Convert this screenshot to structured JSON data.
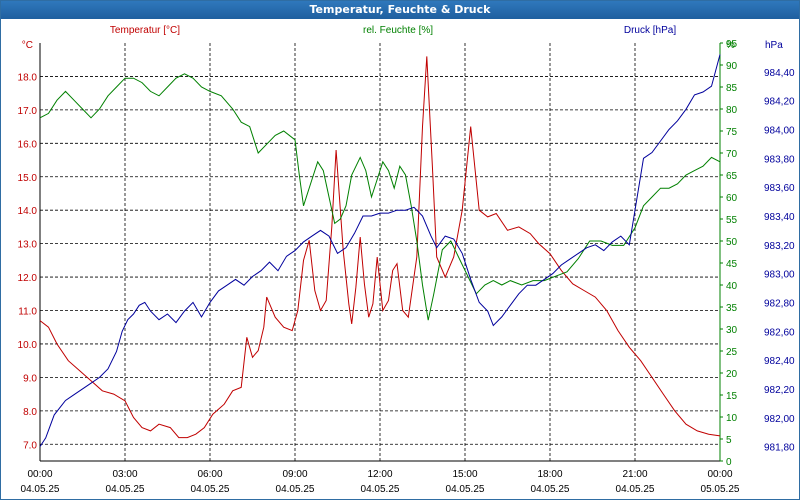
{
  "window": {
    "title": "Temperatur, Feuchte & Druck"
  },
  "colors": {
    "temperature": "#c00000",
    "humidity": "#008000",
    "pressure": "#00009c",
    "grid": "#000000",
    "frame": "#2f6da3"
  },
  "chart_data": {
    "type": "line",
    "title": "Temperatur, Feuchte & Druck",
    "x_unit": "hours since 04.05.25 00:00",
    "x_range": [
      0,
      24
    ],
    "x_ticks": [
      {
        "x": 0,
        "time": "00:00",
        "date": "04.05.25"
      },
      {
        "x": 3,
        "time": "03:00",
        "date": "04.05.25"
      },
      {
        "x": 6,
        "time": "06:00",
        "date": "04.05.25"
      },
      {
        "x": 9,
        "time": "09:00",
        "date": "04.05.25"
      },
      {
        "x": 12,
        "time": "12:00",
        "date": "04.05.25"
      },
      {
        "x": 15,
        "time": "15:00",
        "date": "04.05.25"
      },
      {
        "x": 18,
        "time": "18:00",
        "date": "04.05.25"
      },
      {
        "x": 21,
        "time": "21:00",
        "date": "04.05.25"
      },
      {
        "x": 24,
        "time": "00:00",
        "date": "05.05.25"
      }
    ],
    "axes": {
      "temperature": {
        "legend": "Temperatur [°C]",
        "unit": "°C",
        "range": [
          6.5,
          19.0
        ],
        "ticks": [
          "7.0",
          "8.0",
          "9.0",
          "10.0",
          "11.0",
          "12.0",
          "13.0",
          "14.0",
          "15.0",
          "16.0",
          "17.0",
          "18.0"
        ]
      },
      "humidity": {
        "legend": "rel. Feuchte [%]",
        "unit": "%",
        "range": [
          0,
          95
        ],
        "ticks": [
          "0",
          "5",
          "10",
          "15",
          "20",
          "25",
          "30",
          "35",
          "40",
          "45",
          "50",
          "55",
          "60",
          "65",
          "70",
          "75",
          "80",
          "85",
          "90",
          "95"
        ]
      },
      "pressure": {
        "legend": "Druck [hPa]",
        "unit": "hPa",
        "range": [
          981.7,
          984.6
        ],
        "ticks": [
          "981,80",
          "982,00",
          "982,20",
          "982,40",
          "982,60",
          "982,80",
          "983,00",
          "983,20",
          "983,40",
          "983,60",
          "983,80",
          "984,00",
          "984,20",
          "984,40"
        ]
      }
    },
    "series": [
      {
        "name": "Temperatur",
        "axis": "temperature",
        "points": [
          [
            0,
            10.7
          ],
          [
            0.3,
            10.5
          ],
          [
            0.6,
            10.0
          ],
          [
            1.0,
            9.5
          ],
          [
            1.4,
            9.2
          ],
          [
            1.8,
            8.9
          ],
          [
            2.2,
            8.6
          ],
          [
            2.6,
            8.5
          ],
          [
            3.0,
            8.3
          ],
          [
            3.3,
            7.8
          ],
          [
            3.6,
            7.5
          ],
          [
            3.9,
            7.4
          ],
          [
            4.2,
            7.6
          ],
          [
            4.6,
            7.5
          ],
          [
            4.9,
            7.2
          ],
          [
            5.2,
            7.2
          ],
          [
            5.5,
            7.3
          ],
          [
            5.8,
            7.5
          ],
          [
            6.1,
            7.9
          ],
          [
            6.5,
            8.2
          ],
          [
            6.8,
            8.6
          ],
          [
            7.1,
            8.7
          ],
          [
            7.3,
            10.2
          ],
          [
            7.5,
            9.6
          ],
          [
            7.7,
            9.8
          ],
          [
            7.9,
            10.5
          ],
          [
            8.0,
            11.4
          ],
          [
            8.3,
            10.8
          ],
          [
            8.6,
            10.5
          ],
          [
            8.9,
            10.4
          ],
          [
            9.1,
            11.0
          ],
          [
            9.3,
            12.5
          ],
          [
            9.5,
            13.1
          ],
          [
            9.7,
            11.6
          ],
          [
            9.9,
            11.0
          ],
          [
            10.1,
            11.3
          ],
          [
            10.3,
            13.5
          ],
          [
            10.45,
            15.8
          ],
          [
            10.7,
            12.8
          ],
          [
            10.9,
            11.2
          ],
          [
            11.0,
            10.6
          ],
          [
            11.15,
            11.7
          ],
          [
            11.3,
            13.2
          ],
          [
            11.45,
            11.8
          ],
          [
            11.6,
            10.8
          ],
          [
            11.75,
            11.2
          ],
          [
            11.9,
            12.6
          ],
          [
            12.1,
            11.0
          ],
          [
            12.3,
            11.3
          ],
          [
            12.45,
            12.2
          ],
          [
            12.6,
            12.4
          ],
          [
            12.8,
            11.0
          ],
          [
            13.0,
            10.8
          ],
          [
            13.3,
            12.6
          ],
          [
            13.5,
            16.5
          ],
          [
            13.65,
            18.6
          ],
          [
            13.85,
            15.3
          ],
          [
            14.0,
            12.6
          ],
          [
            14.3,
            12.0
          ],
          [
            14.6,
            12.6
          ],
          [
            14.9,
            14.0
          ],
          [
            15.2,
            16.5
          ],
          [
            15.5,
            14.0
          ],
          [
            15.8,
            13.8
          ],
          [
            16.1,
            13.9
          ],
          [
            16.5,
            13.4
          ],
          [
            16.9,
            13.5
          ],
          [
            17.3,
            13.3
          ],
          [
            17.6,
            13.0
          ],
          [
            18.0,
            12.7
          ],
          [
            18.4,
            12.2
          ],
          [
            18.8,
            11.8
          ],
          [
            19.2,
            11.6
          ],
          [
            19.6,
            11.4
          ],
          [
            20.0,
            11.0
          ],
          [
            20.4,
            10.4
          ],
          [
            20.8,
            9.9
          ],
          [
            21.2,
            9.5
          ],
          [
            21.6,
            9.0
          ],
          [
            22.0,
            8.5
          ],
          [
            22.4,
            8.0
          ],
          [
            22.8,
            7.6
          ],
          [
            23.2,
            7.4
          ],
          [
            23.6,
            7.3
          ],
          [
            24.0,
            7.25
          ]
        ]
      },
      {
        "name": "rel. Feuchte",
        "axis": "humidity",
        "points": [
          [
            0,
            78
          ],
          [
            0.3,
            79
          ],
          [
            0.6,
            82
          ],
          [
            0.9,
            84
          ],
          [
            1.2,
            82
          ],
          [
            1.5,
            80
          ],
          [
            1.8,
            78
          ],
          [
            2.1,
            80
          ],
          [
            2.4,
            83
          ],
          [
            2.7,
            85
          ],
          [
            3.0,
            87
          ],
          [
            3.3,
            87
          ],
          [
            3.6,
            86
          ],
          [
            3.9,
            84
          ],
          [
            4.2,
            83
          ],
          [
            4.5,
            85
          ],
          [
            4.8,
            87
          ],
          [
            5.1,
            88
          ],
          [
            5.4,
            87
          ],
          [
            5.7,
            85
          ],
          [
            6.0,
            84
          ],
          [
            6.4,
            83
          ],
          [
            6.8,
            80
          ],
          [
            7.1,
            77
          ],
          [
            7.4,
            76
          ],
          [
            7.7,
            70
          ],
          [
            8.0,
            72
          ],
          [
            8.3,
            74
          ],
          [
            8.6,
            75
          ],
          [
            9.0,
            73
          ],
          [
            9.15,
            65
          ],
          [
            9.3,
            58
          ],
          [
            9.6,
            64
          ],
          [
            9.8,
            68
          ],
          [
            10.0,
            66
          ],
          [
            10.2,
            60
          ],
          [
            10.4,
            54
          ],
          [
            10.6,
            55
          ],
          [
            10.8,
            58
          ],
          [
            11.0,
            65
          ],
          [
            11.3,
            69
          ],
          [
            11.5,
            66
          ],
          [
            11.7,
            60
          ],
          [
            11.9,
            64
          ],
          [
            12.1,
            68
          ],
          [
            12.3,
            66
          ],
          [
            12.5,
            62
          ],
          [
            12.7,
            67
          ],
          [
            12.9,
            65
          ],
          [
            13.1,
            58
          ],
          [
            13.3,
            50
          ],
          [
            13.5,
            40
          ],
          [
            13.7,
            32
          ],
          [
            13.9,
            38
          ],
          [
            14.2,
            48
          ],
          [
            14.5,
            50
          ],
          [
            14.8,
            46
          ],
          [
            15.1,
            42
          ],
          [
            15.4,
            38
          ],
          [
            15.7,
            40
          ],
          [
            16.0,
            41
          ],
          [
            16.3,
            40
          ],
          [
            16.6,
            41
          ],
          [
            17.0,
            40
          ],
          [
            17.4,
            41
          ],
          [
            17.8,
            41
          ],
          [
            18.2,
            42
          ],
          [
            18.6,
            43
          ],
          [
            19.0,
            46
          ],
          [
            19.4,
            50
          ],
          [
            19.8,
            50
          ],
          [
            20.2,
            49
          ],
          [
            20.6,
            49
          ],
          [
            21.0,
            53
          ],
          [
            21.3,
            58
          ],
          [
            21.6,
            60
          ],
          [
            21.9,
            62
          ],
          [
            22.2,
            62
          ],
          [
            22.5,
            63
          ],
          [
            22.8,
            65
          ],
          [
            23.1,
            66
          ],
          [
            23.4,
            67
          ],
          [
            23.7,
            69
          ],
          [
            24.0,
            68
          ]
        ]
      },
      {
        "name": "Druck",
        "axis": "pressure",
        "points": [
          [
            0,
            981.8
          ],
          [
            0.2,
            981.86
          ],
          [
            0.5,
            982.02
          ],
          [
            0.9,
            982.12
          ],
          [
            1.2,
            982.16
          ],
          [
            1.5,
            982.2
          ],
          [
            1.8,
            982.24
          ],
          [
            2.1,
            982.28
          ],
          [
            2.4,
            982.34
          ],
          [
            2.7,
            982.46
          ],
          [
            2.9,
            982.6
          ],
          [
            3.1,
            982.68
          ],
          [
            3.3,
            982.72
          ],
          [
            3.5,
            982.78
          ],
          [
            3.7,
            982.8
          ],
          [
            3.9,
            982.74
          ],
          [
            4.2,
            982.68
          ],
          [
            4.5,
            982.72
          ],
          [
            4.8,
            982.66
          ],
          [
            5.1,
            982.74
          ],
          [
            5.4,
            982.8
          ],
          [
            5.7,
            982.7
          ],
          [
            6.0,
            982.8
          ],
          [
            6.3,
            982.88
          ],
          [
            6.6,
            982.92
          ],
          [
            6.9,
            982.96
          ],
          [
            7.2,
            982.92
          ],
          [
            7.5,
            982.98
          ],
          [
            7.8,
            983.02
          ],
          [
            8.1,
            983.08
          ],
          [
            8.4,
            983.02
          ],
          [
            8.7,
            983.12
          ],
          [
            9.0,
            983.16
          ],
          [
            9.3,
            983.22
          ],
          [
            9.6,
            983.26
          ],
          [
            9.9,
            983.3
          ],
          [
            10.2,
            983.26
          ],
          [
            10.5,
            983.14
          ],
          [
            10.8,
            983.18
          ],
          [
            11.1,
            983.28
          ],
          [
            11.4,
            983.4
          ],
          [
            11.7,
            983.4
          ],
          [
            12.0,
            983.42
          ],
          [
            12.3,
            983.42
          ],
          [
            12.6,
            983.44
          ],
          [
            12.9,
            983.44
          ],
          [
            13.2,
            983.46
          ],
          [
            13.5,
            983.4
          ],
          [
            13.8,
            983.26
          ],
          [
            14.0,
            983.18
          ],
          [
            14.3,
            983.26
          ],
          [
            14.6,
            983.24
          ],
          [
            14.9,
            983.14
          ],
          [
            15.2,
            982.96
          ],
          [
            15.5,
            982.8
          ],
          [
            15.8,
            982.74
          ],
          [
            16.0,
            982.64
          ],
          [
            16.3,
            982.7
          ],
          [
            16.6,
            982.78
          ],
          [
            16.9,
            982.86
          ],
          [
            17.2,
            982.92
          ],
          [
            17.5,
            982.92
          ],
          [
            17.8,
            982.96
          ],
          [
            18.1,
            983.0
          ],
          [
            18.4,
            983.06
          ],
          [
            18.7,
            983.1
          ],
          [
            19.0,
            983.14
          ],
          [
            19.3,
            983.18
          ],
          [
            19.6,
            983.2
          ],
          [
            19.9,
            983.16
          ],
          [
            20.2,
            983.22
          ],
          [
            20.5,
            983.26
          ],
          [
            20.8,
            983.2
          ],
          [
            21.0,
            983.44
          ],
          [
            21.3,
            983.8
          ],
          [
            21.6,
            983.84
          ],
          [
            21.9,
            983.92
          ],
          [
            22.2,
            984.0
          ],
          [
            22.5,
            984.06
          ],
          [
            22.8,
            984.14
          ],
          [
            23.1,
            984.24
          ],
          [
            23.4,
            984.26
          ],
          [
            23.7,
            984.3
          ],
          [
            24.0,
            984.52
          ]
        ]
      }
    ]
  }
}
